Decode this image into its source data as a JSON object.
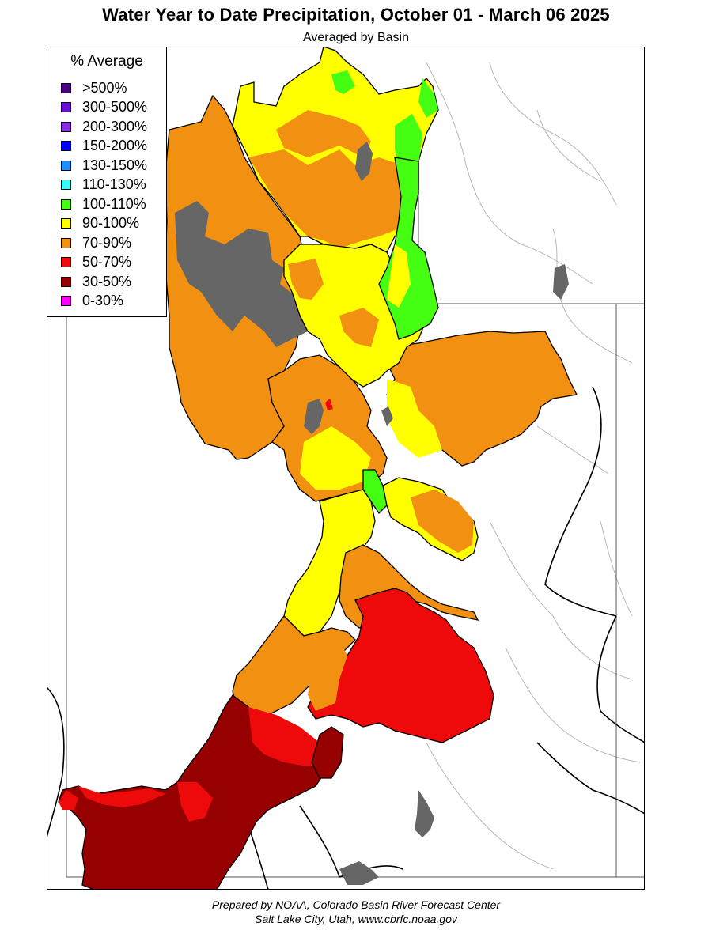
{
  "title": "Water Year to Date Precipitation, October 01  - March 06 2025",
  "subtitle": "Averaged by Basin",
  "legend": {
    "title": "% Average",
    "items": [
      {
        "label": ">500%",
        "color": "#4b0082"
      },
      {
        "label": "300-500%",
        "color": "#6a0dd6"
      },
      {
        "label": "200-300%",
        "color": "#8a2be2"
      },
      {
        "label": "150-200%",
        "color": "#0000ff"
      },
      {
        "label": "130-150%",
        "color": "#1e8fff"
      },
      {
        "label": "110-130%",
        "color": "#33ffff"
      },
      {
        "label": "100-110%",
        "color": "#44ff11"
      },
      {
        "label": "90-100%",
        "color": "#ffff00"
      },
      {
        "label": "70-90%",
        "color": "#f29111"
      },
      {
        "label": "50-70%",
        "color": "#ee0a0a"
      },
      {
        "label": "30-50%",
        "color": "#960000"
      },
      {
        "label": "0-30%",
        "color": "#ff00ff"
      }
    ]
  },
  "no_data_color": "#666666",
  "footer": {
    "line1": "Prepared by NOAA, Colorado Basin River Forecast Center",
    "line2": "Salt Lake City, Utah, www.cbrfc.noaa.gov"
  }
}
